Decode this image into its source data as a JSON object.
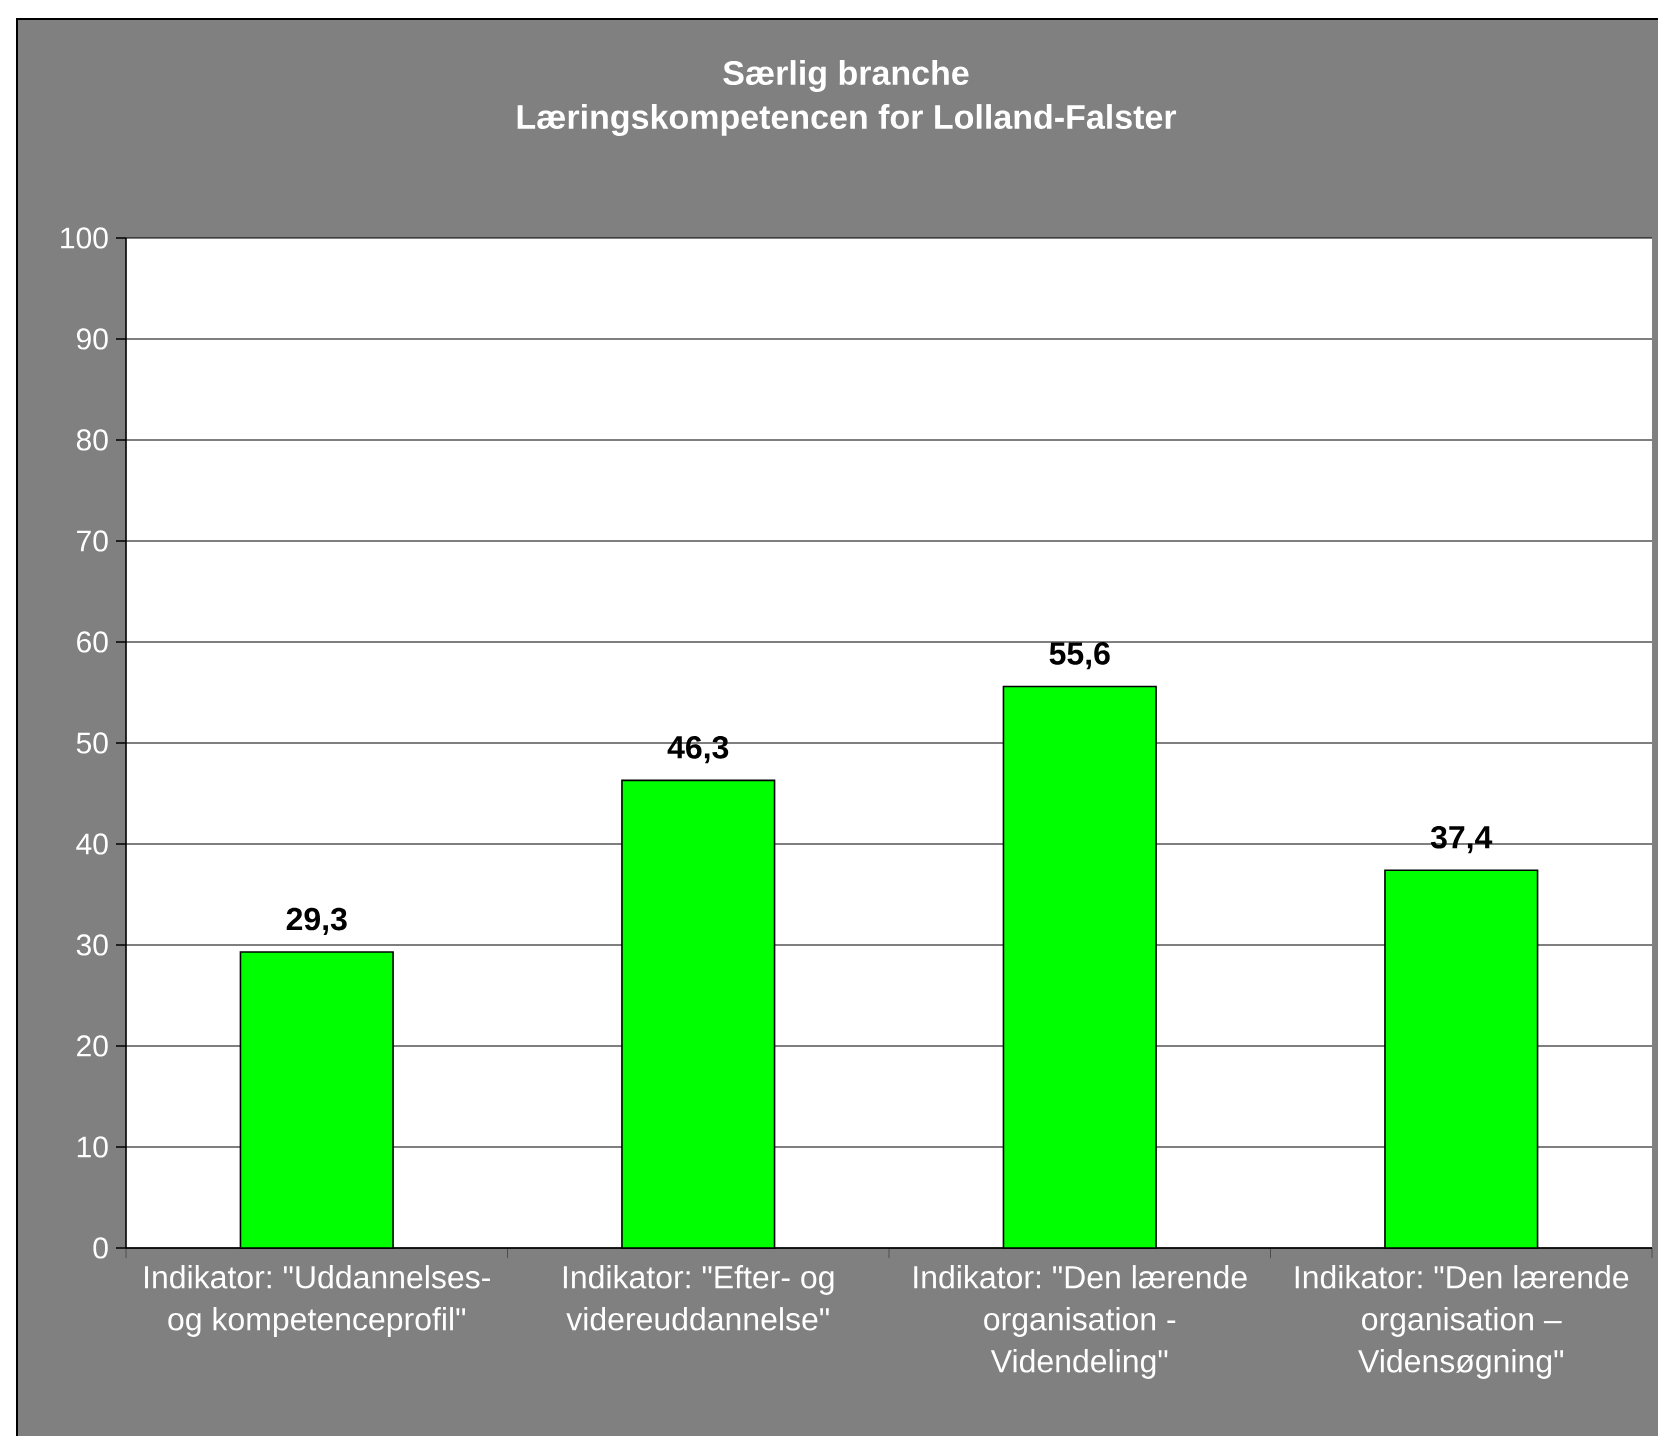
{
  "chart_data": {
    "type": "bar",
    "title": "Særlig branche",
    "subtitle": "Læringskompetencen for Lolland-Falster",
    "categories": [
      "Indikator: \"Uddannelses- og kompetenceprofil\"",
      "Indikator: \"Efter- og videreuddannelse\"",
      "Indikator: \"Den lærende organisation - Videndeling\"",
      "Indikator: \"Den lærende organisation – Vidensøgning\""
    ],
    "values": [
      29.3,
      46.3,
      55.6,
      37.4
    ],
    "value_labels": [
      "29,3",
      "46,3",
      "55,6",
      "37,4"
    ],
    "color": "#00ff00",
    "ylim": [
      0,
      100
    ],
    "yticks": [
      0,
      10,
      20,
      30,
      40,
      50,
      60,
      70,
      80,
      90,
      100
    ],
    "grid": "y"
  }
}
